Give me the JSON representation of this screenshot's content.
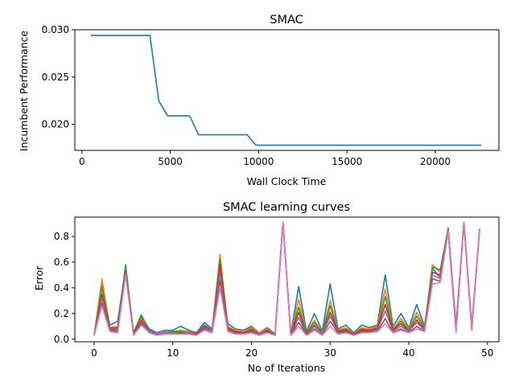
{
  "colors": {
    "primary": "#1f77b4",
    "cycle": [
      "#1f77b4",
      "#ff7f0e",
      "#2ca02c",
      "#d62728",
      "#9467bd",
      "#8c564b",
      "#e377c2"
    ]
  },
  "chart_data": [
    {
      "type": "line",
      "title": "SMAC",
      "xlabel": "Wall Clock Time",
      "ylabel": "Incumbent Performance",
      "xlim": [
        -400,
        23600
      ],
      "ylim": [
        0.01725,
        0.03
      ],
      "xticks": [
        0,
        5000,
        10000,
        15000,
        20000
      ],
      "yticks": [
        0.02,
        0.025,
        0.03
      ],
      "ytick_labels": [
        "0.020",
        "0.025",
        "0.030"
      ],
      "grid": false,
      "series": [
        {
          "x": [
            500,
            3850,
            4350,
            4850,
            6100,
            6600,
            9350,
            9850,
            22600
          ],
          "y": [
            0.0294,
            0.0294,
            0.0225,
            0.0209,
            0.0209,
            0.0189,
            0.0189,
            0.0178,
            0.0178
          ]
        }
      ]
    },
    {
      "type": "line",
      "title": "SMAC learning curves",
      "xlabel": "No of Iterations",
      "ylabel": "Error",
      "xlim": [
        -2.45,
        51.45
      ],
      "ylim": [
        -0.02,
        0.95
      ],
      "xticks": [
        0,
        10,
        20,
        30,
        40,
        50
      ],
      "yticks": [
        0.0,
        0.2,
        0.4,
        0.6,
        0.8
      ],
      "ytick_labels": [
        "0.0",
        "0.2",
        "0.4",
        "0.6",
        "0.8"
      ],
      "grid": false,
      "series": [
        {
          "values": [
            0.03,
            0.42,
            0.11,
            0.14,
            0.55,
            0.05,
            0.18,
            0.08,
            0.05,
            0.07,
            0.07,
            0.1,
            0.07,
            0.05,
            0.13,
            0.08,
            0.52,
            0.12,
            0.08,
            0.07,
            0.1,
            0.05,
            0.09,
            0.04,
            0.91,
            0.04,
            0.41,
            0.06,
            0.2,
            0.06,
            0.43,
            0.08,
            0.11,
            0.05,
            0.11,
            0.09,
            0.11,
            0.5,
            0.1,
            0.2,
            0.09,
            0.27,
            0.1,
            0.55,
            0.48,
            0.86,
            0.11,
            0.91,
            0.1,
            0.86
          ]
        },
        {
          "values": [
            0.03,
            0.47,
            0.09,
            0.1,
            0.56,
            0.05,
            0.16,
            0.07,
            0.04,
            0.06,
            0.06,
            0.07,
            0.06,
            0.04,
            0.11,
            0.07,
            0.66,
            0.1,
            0.07,
            0.06,
            0.09,
            0.05,
            0.08,
            0.04,
            0.91,
            0.04,
            0.31,
            0.05,
            0.15,
            0.05,
            0.3,
            0.07,
            0.09,
            0.04,
            0.09,
            0.08,
            0.1,
            0.39,
            0.08,
            0.16,
            0.08,
            0.21,
            0.09,
            0.58,
            0.52,
            0.87,
            0.09,
            0.91,
            0.09,
            0.86
          ]
        },
        {
          "values": [
            0.03,
            0.4,
            0.09,
            0.09,
            0.58,
            0.05,
            0.19,
            0.07,
            0.04,
            0.05,
            0.06,
            0.06,
            0.05,
            0.04,
            0.11,
            0.07,
            0.62,
            0.09,
            0.06,
            0.05,
            0.08,
            0.04,
            0.07,
            0.04,
            0.91,
            0.04,
            0.25,
            0.05,
            0.13,
            0.05,
            0.26,
            0.06,
            0.08,
            0.04,
            0.08,
            0.07,
            0.09,
            0.33,
            0.07,
            0.14,
            0.07,
            0.18,
            0.08,
            0.56,
            0.54,
            0.86,
            0.08,
            0.91,
            0.09,
            0.86
          ]
        },
        {
          "values": [
            0.03,
            0.35,
            0.08,
            0.08,
            0.53,
            0.04,
            0.15,
            0.06,
            0.04,
            0.05,
            0.05,
            0.05,
            0.05,
            0.04,
            0.1,
            0.06,
            0.58,
            0.08,
            0.06,
            0.05,
            0.07,
            0.04,
            0.07,
            0.03,
            0.91,
            0.03,
            0.21,
            0.04,
            0.11,
            0.04,
            0.21,
            0.06,
            0.07,
            0.04,
            0.07,
            0.07,
            0.08,
            0.27,
            0.07,
            0.12,
            0.06,
            0.15,
            0.07,
            0.52,
            0.5,
            0.85,
            0.07,
            0.91,
            0.08,
            0.86
          ]
        },
        {
          "values": [
            0.03,
            0.32,
            0.07,
            0.07,
            0.52,
            0.04,
            0.13,
            0.06,
            0.04,
            0.05,
            0.05,
            0.05,
            0.05,
            0.03,
            0.09,
            0.06,
            0.52,
            0.07,
            0.05,
            0.04,
            0.06,
            0.04,
            0.06,
            0.03,
            0.91,
            0.03,
            0.17,
            0.04,
            0.1,
            0.04,
            0.18,
            0.05,
            0.06,
            0.03,
            0.06,
            0.06,
            0.07,
            0.22,
            0.06,
            0.1,
            0.06,
            0.13,
            0.07,
            0.5,
            0.47,
            0.85,
            0.07,
            0.91,
            0.08,
            0.86
          ]
        },
        {
          "values": [
            0.03,
            0.28,
            0.07,
            0.06,
            0.51,
            0.04,
            0.12,
            0.05,
            0.03,
            0.04,
            0.04,
            0.05,
            0.04,
            0.03,
            0.08,
            0.05,
            0.46,
            0.06,
            0.05,
            0.04,
            0.06,
            0.03,
            0.06,
            0.03,
            0.91,
            0.03,
            0.13,
            0.04,
            0.08,
            0.03,
            0.14,
            0.05,
            0.06,
            0.03,
            0.06,
            0.06,
            0.06,
            0.16,
            0.05,
            0.08,
            0.05,
            0.1,
            0.06,
            0.47,
            0.45,
            0.84,
            0.06,
            0.91,
            0.07,
            0.86
          ]
        },
        {
          "values": [
            0.03,
            0.26,
            0.06,
            0.05,
            0.5,
            0.03,
            0.11,
            0.05,
            0.03,
            0.04,
            0.04,
            0.04,
            0.04,
            0.03,
            0.07,
            0.05,
            0.4,
            0.06,
            0.04,
            0.04,
            0.05,
            0.03,
            0.05,
            0.03,
            0.91,
            0.03,
            0.1,
            0.03,
            0.07,
            0.03,
            0.1,
            0.04,
            0.05,
            0.03,
            0.05,
            0.05,
            0.06,
            0.12,
            0.05,
            0.07,
            0.05,
            0.08,
            0.06,
            0.43,
            0.44,
            0.84,
            0.05,
            0.91,
            0.07,
            0.86
          ]
        }
      ]
    }
  ]
}
